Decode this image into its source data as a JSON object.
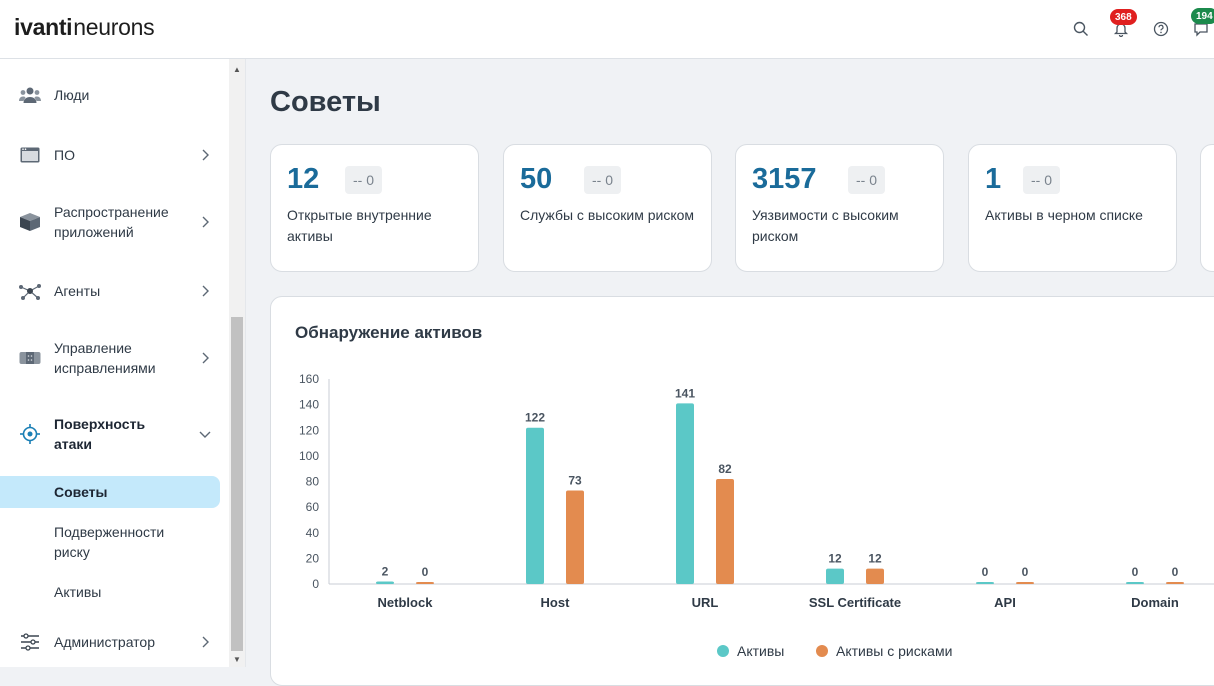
{
  "header": {
    "brand": "ivanti",
    "product": "neurons",
    "notifications_count": "368",
    "messages_count": "194",
    "colors": {
      "notif_badge": "#e02020",
      "msg_badge": "#1b8a4c"
    }
  },
  "sidebar": {
    "items": [
      {
        "label": "Люди",
        "icon": "people-icon"
      },
      {
        "label": "ПО",
        "icon": "window-icon"
      },
      {
        "label": "Распространение приложений",
        "icon": "package-icon"
      },
      {
        "label": "Агенты",
        "icon": "network-icon"
      },
      {
        "label": "Управление исправлениями",
        "icon": "patch-icon"
      },
      {
        "label": "Поверхность атаки",
        "icon": "target-icon"
      },
      {
        "label": "Администратор",
        "icon": "sliders-icon"
      }
    ],
    "subitems": [
      {
        "label": "Советы",
        "active": true
      },
      {
        "label": "Подверженности риску",
        "active": false
      },
      {
        "label": "Активы",
        "active": false
      }
    ]
  },
  "main": {
    "title": "Советы",
    "cards": [
      {
        "value": "12",
        "delta": "-- 0",
        "label": "Открытые внутренние активы"
      },
      {
        "value": "50",
        "delta": "-- 0",
        "label": "Службы с высоким риском"
      },
      {
        "value": "3157",
        "delta": "-- 0",
        "label": "Уязвимости с высоким риском"
      },
      {
        "value": "1",
        "delta": "-- 0",
        "label": "Активы в черном списке"
      }
    ],
    "chart_title": "Обнаружение активов"
  },
  "chart_data": {
    "type": "bar",
    "title": "Обнаружение активов",
    "categories": [
      "Netblock",
      "Host",
      "URL",
      "SSL Certificate",
      "API",
      "Domain"
    ],
    "series": [
      {
        "name": "Активы",
        "values": [
          2,
          122,
          141,
          12,
          0,
          0
        ],
        "color": "#5bc8c7"
      },
      {
        "name": "Активы с рисками",
        "values": [
          0,
          73,
          82,
          12,
          0,
          0
        ],
        "color": "#e38b4f"
      }
    ],
    "yticks": [
      "0",
      "20",
      "40",
      "60",
      "80",
      "100",
      "120",
      "140",
      "160"
    ],
    "ylim": [
      0,
      160
    ],
    "legend": "bottom"
  }
}
